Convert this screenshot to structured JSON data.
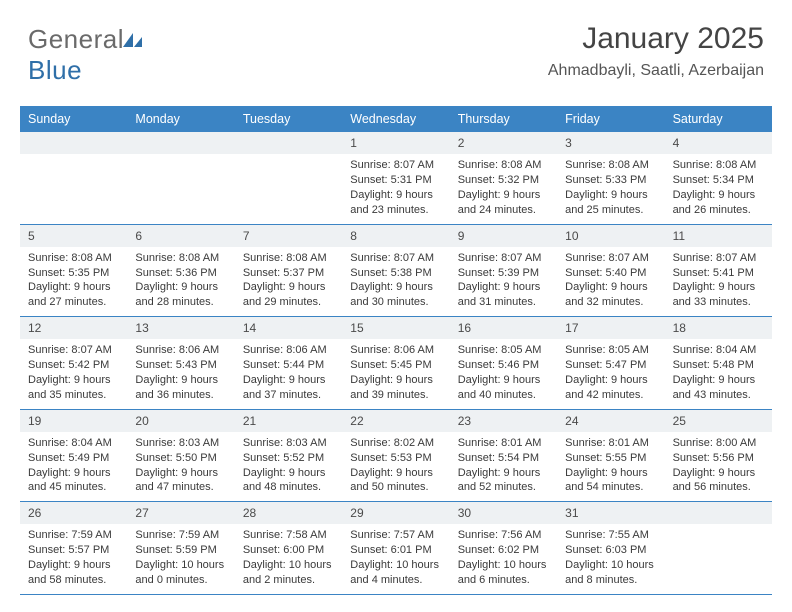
{
  "logo": {
    "text1": "General",
    "text2": "Blue"
  },
  "header": {
    "title": "January 2025",
    "location": "Ahmadbayli, Saatli, Azerbaijan"
  },
  "colors": {
    "header_bg": "#3b84c4",
    "header_text": "#ffffff",
    "daynum_bg": "#eef1f3",
    "row_border": "#3b84c4",
    "body_text": "#3a3a3a",
    "logo_gray": "#6a6a6a",
    "logo_blue": "#2f6fa8"
  },
  "weekdays": [
    "Sunday",
    "Monday",
    "Tuesday",
    "Wednesday",
    "Thursday",
    "Friday",
    "Saturday"
  ],
  "weeks": [
    [
      {
        "n": "",
        "lines": []
      },
      {
        "n": "",
        "lines": []
      },
      {
        "n": "",
        "lines": []
      },
      {
        "n": "1",
        "lines": [
          "Sunrise: 8:07 AM",
          "Sunset: 5:31 PM",
          "Daylight: 9 hours",
          "and 23 minutes."
        ]
      },
      {
        "n": "2",
        "lines": [
          "Sunrise: 8:08 AM",
          "Sunset: 5:32 PM",
          "Daylight: 9 hours",
          "and 24 minutes."
        ]
      },
      {
        "n": "3",
        "lines": [
          "Sunrise: 8:08 AM",
          "Sunset: 5:33 PM",
          "Daylight: 9 hours",
          "and 25 minutes."
        ]
      },
      {
        "n": "4",
        "lines": [
          "Sunrise: 8:08 AM",
          "Sunset: 5:34 PM",
          "Daylight: 9 hours",
          "and 26 minutes."
        ]
      }
    ],
    [
      {
        "n": "5",
        "lines": [
          "Sunrise: 8:08 AM",
          "Sunset: 5:35 PM",
          "Daylight: 9 hours",
          "and 27 minutes."
        ]
      },
      {
        "n": "6",
        "lines": [
          "Sunrise: 8:08 AM",
          "Sunset: 5:36 PM",
          "Daylight: 9 hours",
          "and 28 minutes."
        ]
      },
      {
        "n": "7",
        "lines": [
          "Sunrise: 8:08 AM",
          "Sunset: 5:37 PM",
          "Daylight: 9 hours",
          "and 29 minutes."
        ]
      },
      {
        "n": "8",
        "lines": [
          "Sunrise: 8:07 AM",
          "Sunset: 5:38 PM",
          "Daylight: 9 hours",
          "and 30 minutes."
        ]
      },
      {
        "n": "9",
        "lines": [
          "Sunrise: 8:07 AM",
          "Sunset: 5:39 PM",
          "Daylight: 9 hours",
          "and 31 minutes."
        ]
      },
      {
        "n": "10",
        "lines": [
          "Sunrise: 8:07 AM",
          "Sunset: 5:40 PM",
          "Daylight: 9 hours",
          "and 32 minutes."
        ]
      },
      {
        "n": "11",
        "lines": [
          "Sunrise: 8:07 AM",
          "Sunset: 5:41 PM",
          "Daylight: 9 hours",
          "and 33 minutes."
        ]
      }
    ],
    [
      {
        "n": "12",
        "lines": [
          "Sunrise: 8:07 AM",
          "Sunset: 5:42 PM",
          "Daylight: 9 hours",
          "and 35 minutes."
        ]
      },
      {
        "n": "13",
        "lines": [
          "Sunrise: 8:06 AM",
          "Sunset: 5:43 PM",
          "Daylight: 9 hours",
          "and 36 minutes."
        ]
      },
      {
        "n": "14",
        "lines": [
          "Sunrise: 8:06 AM",
          "Sunset: 5:44 PM",
          "Daylight: 9 hours",
          "and 37 minutes."
        ]
      },
      {
        "n": "15",
        "lines": [
          "Sunrise: 8:06 AM",
          "Sunset: 5:45 PM",
          "Daylight: 9 hours",
          "and 39 minutes."
        ]
      },
      {
        "n": "16",
        "lines": [
          "Sunrise: 8:05 AM",
          "Sunset: 5:46 PM",
          "Daylight: 9 hours",
          "and 40 minutes."
        ]
      },
      {
        "n": "17",
        "lines": [
          "Sunrise: 8:05 AM",
          "Sunset: 5:47 PM",
          "Daylight: 9 hours",
          "and 42 minutes."
        ]
      },
      {
        "n": "18",
        "lines": [
          "Sunrise: 8:04 AM",
          "Sunset: 5:48 PM",
          "Daylight: 9 hours",
          "and 43 minutes."
        ]
      }
    ],
    [
      {
        "n": "19",
        "lines": [
          "Sunrise: 8:04 AM",
          "Sunset: 5:49 PM",
          "Daylight: 9 hours",
          "and 45 minutes."
        ]
      },
      {
        "n": "20",
        "lines": [
          "Sunrise: 8:03 AM",
          "Sunset: 5:50 PM",
          "Daylight: 9 hours",
          "and 47 minutes."
        ]
      },
      {
        "n": "21",
        "lines": [
          "Sunrise: 8:03 AM",
          "Sunset: 5:52 PM",
          "Daylight: 9 hours",
          "and 48 minutes."
        ]
      },
      {
        "n": "22",
        "lines": [
          "Sunrise: 8:02 AM",
          "Sunset: 5:53 PM",
          "Daylight: 9 hours",
          "and 50 minutes."
        ]
      },
      {
        "n": "23",
        "lines": [
          "Sunrise: 8:01 AM",
          "Sunset: 5:54 PM",
          "Daylight: 9 hours",
          "and 52 minutes."
        ]
      },
      {
        "n": "24",
        "lines": [
          "Sunrise: 8:01 AM",
          "Sunset: 5:55 PM",
          "Daylight: 9 hours",
          "and 54 minutes."
        ]
      },
      {
        "n": "25",
        "lines": [
          "Sunrise: 8:00 AM",
          "Sunset: 5:56 PM",
          "Daylight: 9 hours",
          "and 56 minutes."
        ]
      }
    ],
    [
      {
        "n": "26",
        "lines": [
          "Sunrise: 7:59 AM",
          "Sunset: 5:57 PM",
          "Daylight: 9 hours",
          "and 58 minutes."
        ]
      },
      {
        "n": "27",
        "lines": [
          "Sunrise: 7:59 AM",
          "Sunset: 5:59 PM",
          "Daylight: 10 hours",
          "and 0 minutes."
        ]
      },
      {
        "n": "28",
        "lines": [
          "Sunrise: 7:58 AM",
          "Sunset: 6:00 PM",
          "Daylight: 10 hours",
          "and 2 minutes."
        ]
      },
      {
        "n": "29",
        "lines": [
          "Sunrise: 7:57 AM",
          "Sunset: 6:01 PM",
          "Daylight: 10 hours",
          "and 4 minutes."
        ]
      },
      {
        "n": "30",
        "lines": [
          "Sunrise: 7:56 AM",
          "Sunset: 6:02 PM",
          "Daylight: 10 hours",
          "and 6 minutes."
        ]
      },
      {
        "n": "31",
        "lines": [
          "Sunrise: 7:55 AM",
          "Sunset: 6:03 PM",
          "Daylight: 10 hours",
          "and 8 minutes."
        ]
      },
      {
        "n": "",
        "lines": []
      }
    ]
  ]
}
